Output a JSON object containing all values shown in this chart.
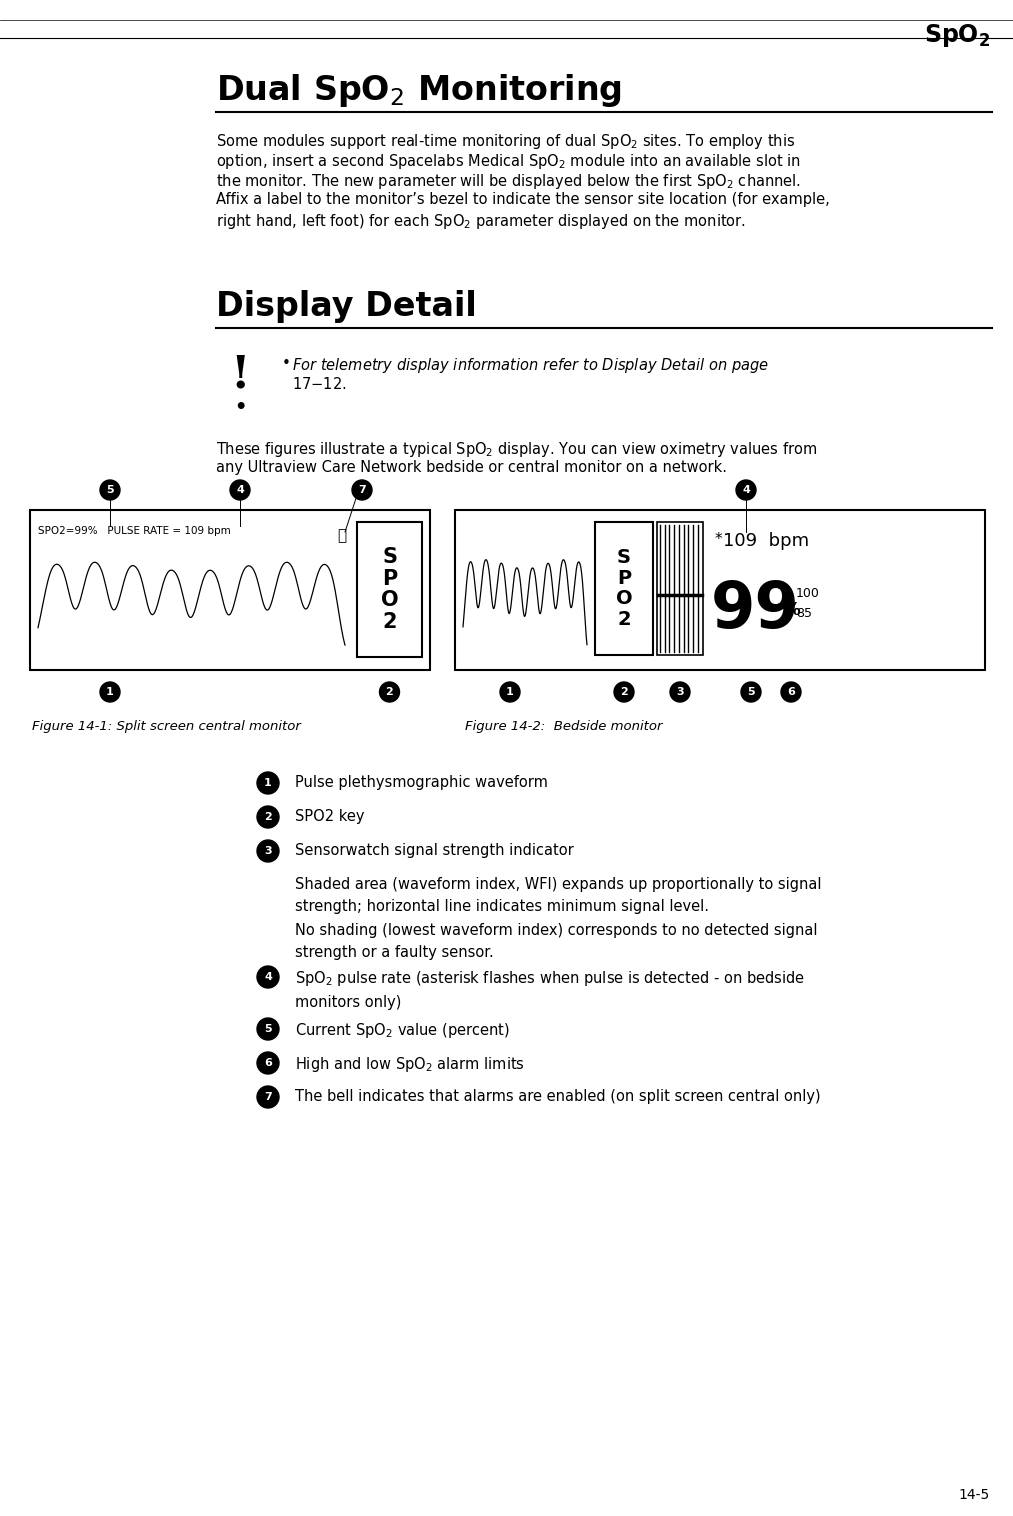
{
  "page_header": "SpO₂",
  "page_footer": "14-5",
  "section1_title": "Dual SpO₂ Monitoring",
  "section2_title": "Display Detail",
  "caution_text": "For telemetry display information refer to Display Detail on page 17-12.",
  "intro_text_line1": "These figures illustrate a typical SpO₂ display. You can view oximetry values from",
  "intro_text_line2": "any Ultraview Care Network bedside or central monitor on a network.",
  "fig1_caption": "Figure 14-1: Split screen central monitor",
  "fig2_caption": "Figure 14-2:  Bedside monitor",
  "fig1_status": "SPO2=99%   PULSE RATE = 109 bpm",
  "bedside_pulse": "109  bpm",
  "bedside_spo2_val": "99",
  "bedside_high": "100",
  "bedside_low": "85",
  "legend_items": [
    {
      "num": "1",
      "text": "Pulse plethysmographic waveform",
      "sub": false
    },
    {
      "num": "2",
      "text": "SPO2 key",
      "sub": false
    },
    {
      "num": "3",
      "text": "Sensorwatch signal strength indicator",
      "sub": false
    },
    {
      "num": "",
      "text": "Shaded area (waveform index, WFI) expands up proportionally to signal\nstrength; horizontal line indicates minimum signal level.",
      "sub": true
    },
    {
      "num": "",
      "text": "No shading (lowest waveform index) corresponds to no detected signal\nstrength or a faulty sensor.",
      "sub": true
    },
    {
      "num": "4",
      "text": "SpO₂ pulse rate (asterisk flashes when pulse is detected - on bedside\nmonitors only)",
      "sub": false
    },
    {
      "num": "5",
      "text": "Current SpO₂ value (percent)",
      "sub": false
    },
    {
      "num": "6",
      "text": "High and low SpO₂ alarm limits",
      "sub": false
    },
    {
      "num": "7",
      "text": "The bell indicates that alarms are enabled (on split screen central only)",
      "sub": false
    }
  ],
  "bg_color": "#ffffff",
  "text_color": "#000000"
}
